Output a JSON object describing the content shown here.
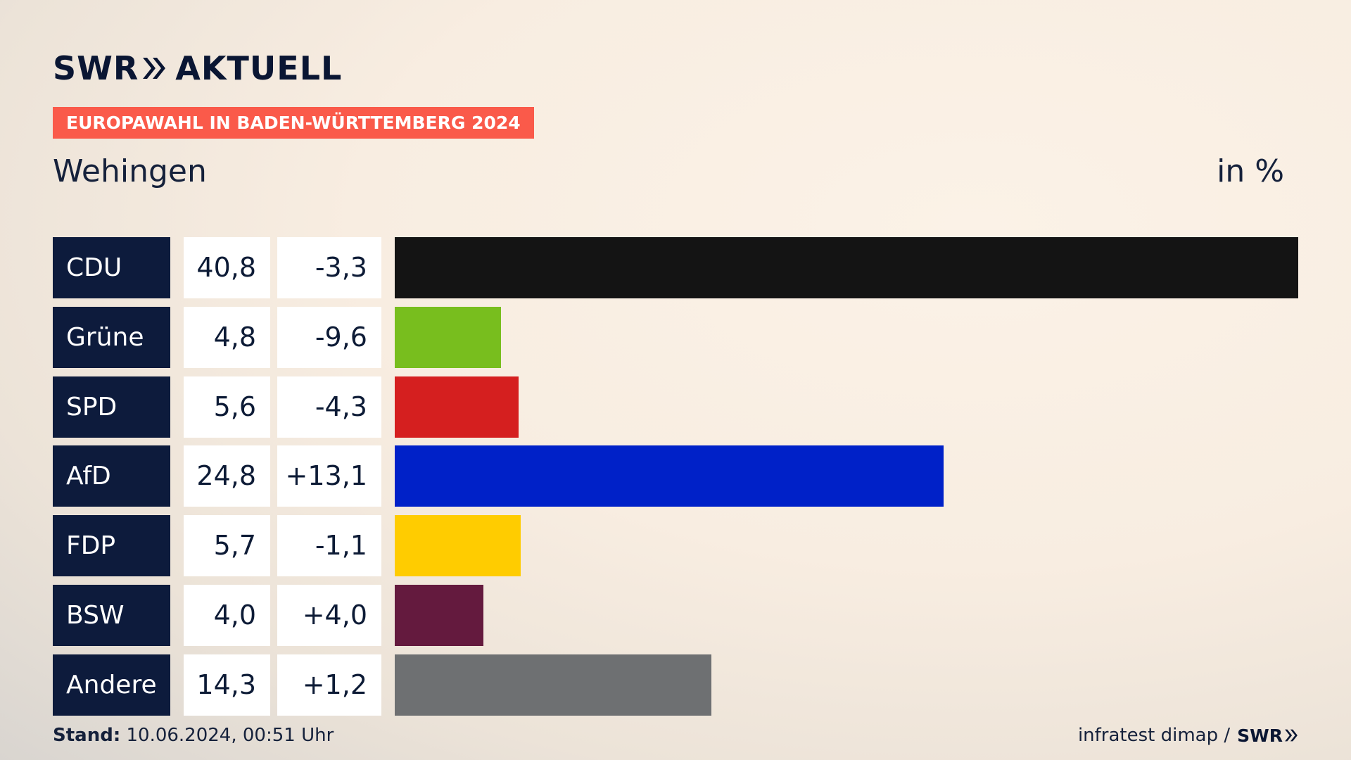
{
  "header": {
    "brand_left": "SWR",
    "brand_right": "AKTUELL",
    "tag": "EUROPAWAHL IN BADEN-WÜRTTEMBERG 2024",
    "place": "Wehingen",
    "unit": "in %"
  },
  "chart_data": {
    "type": "bar",
    "title": "Wehingen",
    "categories": [
      "CDU",
      "Grüne",
      "SPD",
      "AfD",
      "FDP",
      "BSW",
      "Andere"
    ],
    "values": [
      40.8,
      4.8,
      5.6,
      24.8,
      5.7,
      4.0,
      14.3
    ],
    "value_labels": [
      "40,8",
      "4,8",
      "5,6",
      "24,8",
      "5,7",
      "4,0",
      "14,3"
    ],
    "change_labels": [
      "-3,3",
      "-9,6",
      "-4,3",
      "+13,1",
      "-1,1",
      "+4,0",
      "+1,2"
    ],
    "changes": [
      -3.3,
      -9.6,
      -4.3,
      13.1,
      -1.1,
      4.0,
      1.2
    ],
    "colors": [
      "#141414",
      "#78be1e",
      "#d51f1f",
      "#0021c8",
      "#ffcc00",
      "#641a3e",
      "#6e7072"
    ],
    "unit": "in %"
  },
  "footer": {
    "stand_label": "Stand:",
    "stand_value": "10.06.2024, 00:51 Uhr",
    "source": "infratest dimap /",
    "source_logo": "SWR"
  }
}
